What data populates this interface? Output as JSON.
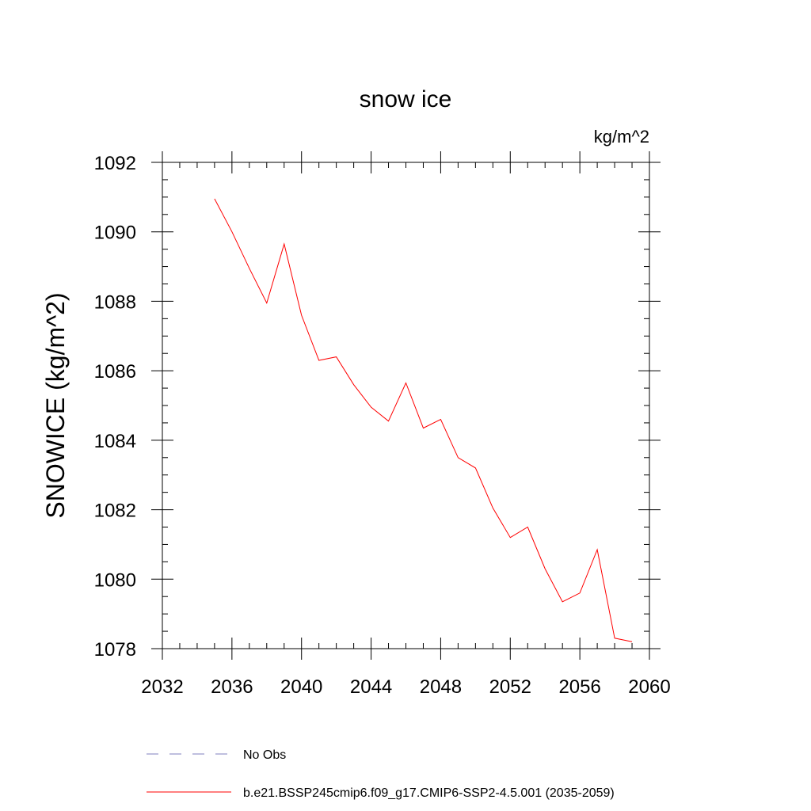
{
  "chart_data": {
    "type": "line",
    "title": "snow ice",
    "units_label": "kg/m^2",
    "ylabel": "SNOWICE  (kg/m^2)",
    "xlabel": "",
    "xlim": [
      2032,
      2060
    ],
    "ylim": [
      1078,
      1092
    ],
    "x_ticks": [
      2032,
      2036,
      2040,
      2044,
      2048,
      2052,
      2056,
      2060
    ],
    "y_ticks": [
      1078,
      1080,
      1082,
      1084,
      1086,
      1088,
      1090,
      1092
    ],
    "grid": false,
    "legend_position": "bottom",
    "series": [
      {
        "name": "b.e21.BSSP245cmip6.f09_g17.CMIP6-SSP2-4.5.001 (2035-2059)",
        "color": "#ff0000",
        "dash": "solid",
        "x": [
          2035,
          2036,
          2037,
          2038,
          2039,
          2040,
          2041,
          2042,
          2043,
          2044,
          2045,
          2046,
          2047,
          2048,
          2049,
          2050,
          2051,
          2052,
          2053,
          2054,
          2055,
          2056,
          2057,
          2058,
          2059
        ],
        "y": [
          1090.95,
          1090.0,
          1088.95,
          1087.95,
          1089.65,
          1087.6,
          1086.3,
          1086.4,
          1085.6,
          1084.95,
          1084.55,
          1085.65,
          1084.35,
          1084.6,
          1083.5,
          1083.2,
          1082.05,
          1081.2,
          1081.5,
          1080.3,
          1079.35,
          1079.6,
          1080.85,
          1078.3,
          1078.2
        ]
      }
    ],
    "legend": [
      {
        "label": "No Obs",
        "color": "#7f7fbf",
        "dash": "dashed"
      },
      {
        "label": "b.e21.BSSP245cmip6.f09_g17.CMIP6-SSP2-4.5.001 (2035-2059)",
        "color": "#ff0000",
        "dash": "solid"
      }
    ]
  }
}
